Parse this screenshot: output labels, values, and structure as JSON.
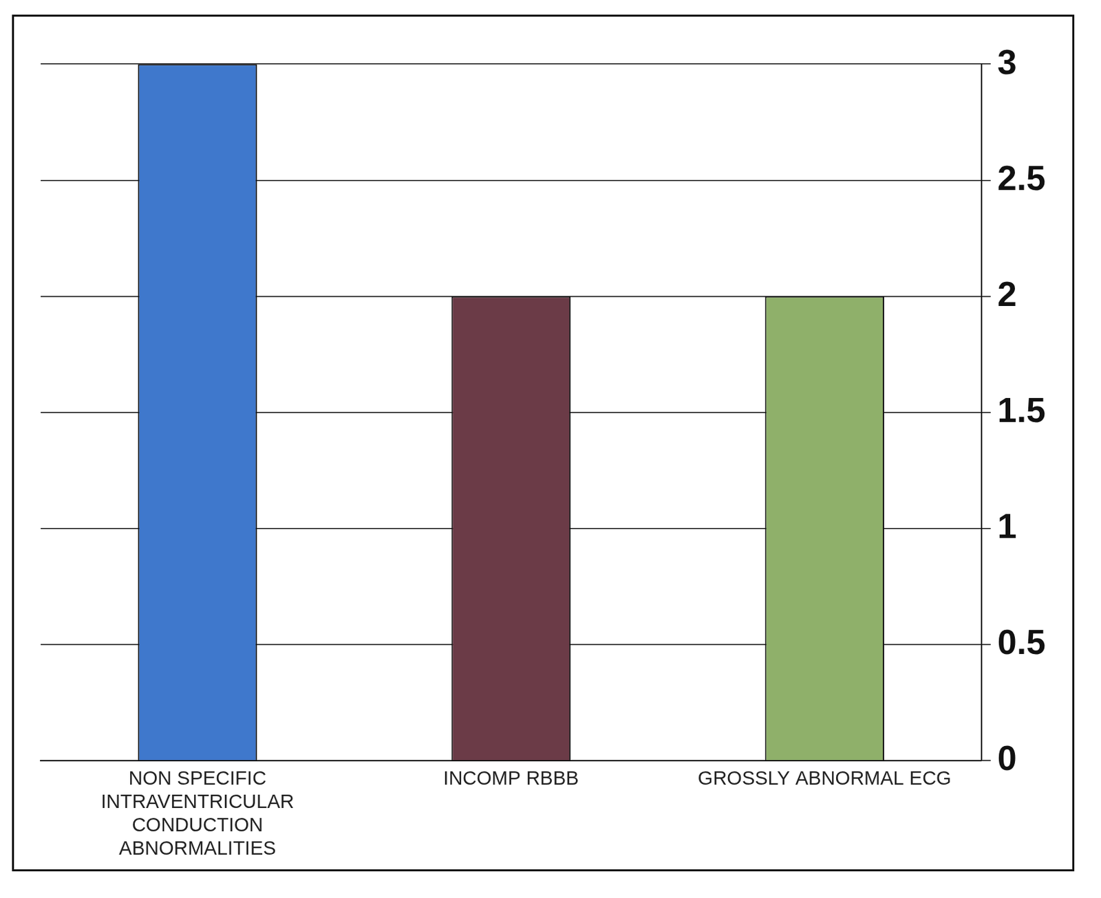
{
  "chart_data": {
    "type": "bar",
    "categories": [
      "NON SPECIFIC INTRAVENTRICULAR CONDUCTION ABNORMALITIES",
      "INCOMP RBBB",
      "GROSSLY ABNORMAL ECG"
    ],
    "values": [
      3,
      2,
      2
    ],
    "colors": [
      "#3f78cc",
      "#6b3b47",
      "#8fb06a"
    ],
    "ylim": [
      0,
      3
    ],
    "yticks": [
      0,
      0.5,
      1,
      1.5,
      2,
      2.5,
      3
    ],
    "grid": true
  }
}
